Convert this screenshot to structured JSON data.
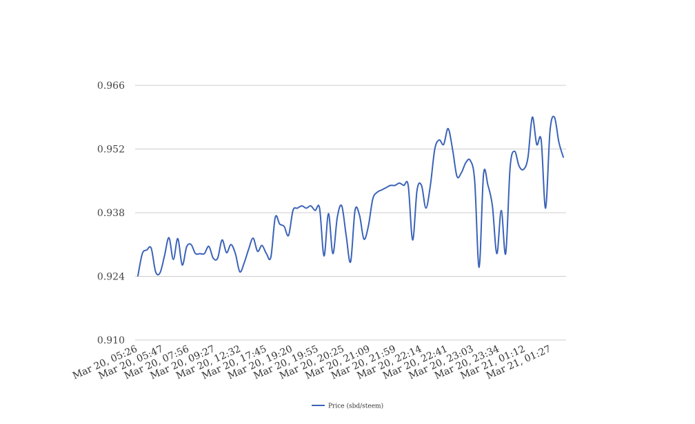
{
  "chart_data": {
    "type": "line",
    "title": "",
    "xlabel": "",
    "ylabel": "",
    "ylim": [
      0.91,
      0.966
    ],
    "y_ticks": [
      "0.910",
      "0.924",
      "0.938",
      "0.952",
      "0.966"
    ],
    "x_tick_labels": [
      "Mar 20, 05:26",
      "Mar 20, 05:47",
      "Mar 20, 07:56",
      "Mar 20, 09:27",
      "Mar 20, 12:32",
      "Mar 20, 17:45",
      "Mar 20, 19:20",
      "Mar 20, 19:55",
      "Mar 20, 20:25",
      "Mar 20, 21:09",
      "Mar 20, 21:59",
      "Mar 20, 22:14",
      "Mar 20, 22:41",
      "Mar 20, 23:03",
      "Mar 20, 23:34",
      "Mar 21, 01:12",
      "Mar 21, 01:27"
    ],
    "grid": true,
    "legend_position": "bottom",
    "series": [
      {
        "name": "Price (sbd/steem)",
        "color": "#3a62b8",
        "values": [
          0.9241,
          0.929,
          0.9298,
          0.9302,
          0.925,
          0.9248,
          0.9285,
          0.9325,
          0.9277,
          0.9323,
          0.9265,
          0.9305,
          0.931,
          0.929,
          0.929,
          0.929,
          0.9306,
          0.928,
          0.928,
          0.932,
          0.9292,
          0.931,
          0.929,
          0.925,
          0.927,
          0.93,
          0.9324,
          0.9295,
          0.9308,
          0.929,
          0.9282,
          0.937,
          0.9355,
          0.935,
          0.933,
          0.9385,
          0.939,
          0.9395,
          0.939,
          0.9395,
          0.9385,
          0.939,
          0.9285,
          0.9378,
          0.929,
          0.937,
          0.9395,
          0.933,
          0.9272,
          0.9385,
          0.9375,
          0.9322,
          0.935,
          0.941,
          0.9425,
          0.943,
          0.9435,
          0.944,
          0.944,
          0.9445,
          0.944,
          0.944,
          0.932,
          0.943,
          0.944,
          0.939,
          0.944,
          0.952,
          0.954,
          0.953,
          0.9565,
          0.952,
          0.946,
          0.9468,
          0.949,
          0.9495,
          0.945,
          0.926,
          0.9465,
          0.944,
          0.9395,
          0.929,
          0.9385,
          0.929,
          0.948,
          0.9515,
          0.9483,
          0.9475,
          0.95,
          0.959,
          0.953,
          0.954,
          0.939,
          0.956,
          0.959,
          0.9535,
          0.9502
        ]
      }
    ]
  }
}
